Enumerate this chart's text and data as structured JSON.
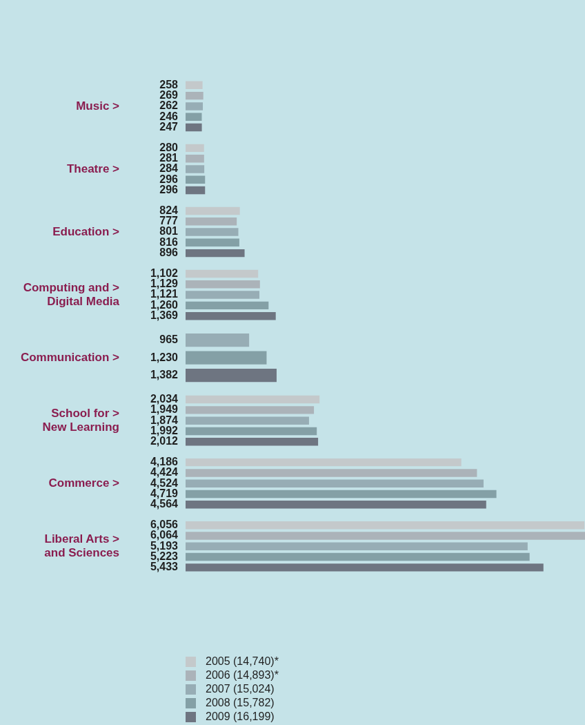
{
  "chart_data": {
    "type": "bar",
    "orientation": "horizontal",
    "categories": [
      "Music >",
      "Theatre >",
      "Education >",
      "Computing and >\nDigital Media",
      "Communication >",
      "School for >\nNew Learning",
      "Commerce >",
      "Liberal Arts >\nand Sciences"
    ],
    "series": [
      {
        "name": "2005 (14,740)*",
        "color": "#c4c9cb",
        "values": [
          258,
          280,
          824,
          1102,
          null,
          2034,
          4186,
          6056
        ],
        "value_labels": [
          "258",
          "280",
          "824",
          "1,102",
          null,
          "2,034",
          "4,186",
          "6,056"
        ]
      },
      {
        "name": "2006 (14,893)*",
        "color": "#abb3b9",
        "values": [
          269,
          281,
          777,
          1129,
          null,
          1949,
          4424,
          6064
        ],
        "value_labels": [
          "269",
          "281",
          "777",
          "1,129",
          null,
          "1,949",
          "4,424",
          "6,064"
        ]
      },
      {
        "name": "2007 (15,024)",
        "color": "#97adb5",
        "values": [
          262,
          284,
          801,
          1121,
          965,
          1874,
          4524,
          5193
        ],
        "value_labels": [
          "262",
          "284",
          "801",
          "1,121",
          "965",
          "1,874",
          "4,524",
          "5,193"
        ]
      },
      {
        "name": "2008 (15,782)",
        "color": "#84a0a6",
        "values": [
          246,
          296,
          816,
          1260,
          1230,
          1992,
          4719,
          5223
        ],
        "value_labels": [
          "246",
          "296",
          "816",
          "1,260",
          "1,230",
          "1,992",
          "4,719",
          "5,223"
        ]
      },
      {
        "name": "2009 (16,199)",
        "color": "#6e7581",
        "values": [
          247,
          296,
          896,
          1369,
          1382,
          2012,
          4564,
          5433
        ],
        "value_labels": [
          "247",
          "296",
          "896",
          "1,369",
          "1,382",
          "2,012",
          "4,564",
          "5,433"
        ]
      }
    ],
    "legend": "bottom"
  }
}
